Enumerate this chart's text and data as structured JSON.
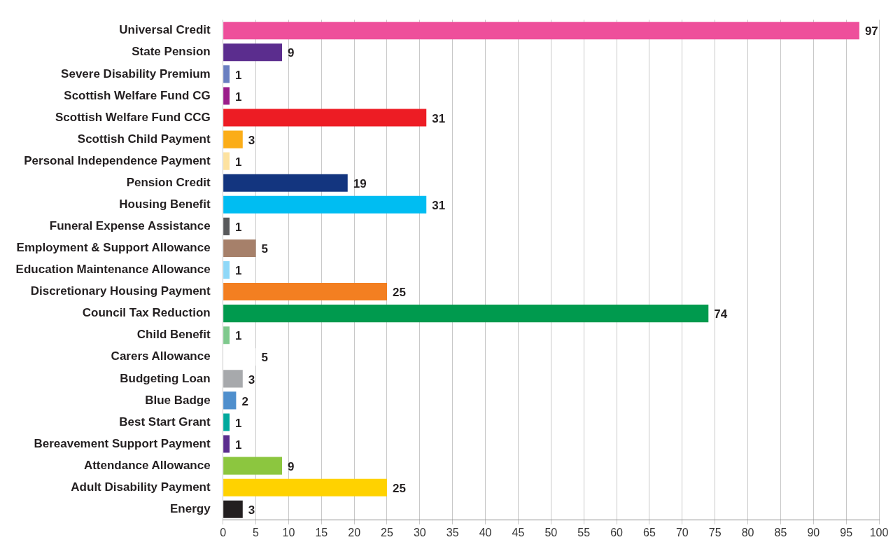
{
  "chart_data": {
    "type": "bar",
    "orientation": "horizontal",
    "categories": [
      "Universal Credit",
      "State Pension",
      "Severe Disability Premium",
      "Scottish Welfare Fund CG",
      "Scottish Welfare Fund CCG",
      "Scottish Child Payment",
      "Personal Independence Payment",
      "Pension Credit",
      "Housing Benefit",
      "Funeral Expense Assistance",
      "Employment & Support Allowance",
      "Education Maintenance Allowance",
      "Discretionary Housing Payment",
      "Council Tax Reduction",
      "Child Benefit",
      "Carers Allowance",
      "Budgeting Loan",
      "Blue Badge",
      "Best Start Grant",
      "Bereavement Support Payment",
      "Attendance Allowance",
      "Adult Disability Payment",
      "Energy"
    ],
    "values": [
      97,
      9,
      1,
      1,
      31,
      3,
      1,
      19,
      31,
      1,
      5,
      1,
      25,
      74,
      1,
      5,
      3,
      2,
      1,
      1,
      9,
      25,
      3
    ],
    "colors": [
      "#ee4f9b",
      "#5b2d8e",
      "#6a7fc1",
      "#9b1d8a",
      "#ed1c24",
      "#fbad18",
      "#fde2a0",
      "#13357f",
      "#00bdf2",
      "#58595b",
      "#a6806a",
      "#8fd8f8",
      "#f37f21",
      "#009a4e",
      "#7fc98d",
      "#ffffff",
      "#a7a9ac",
      "#4f8fcd",
      "#00a99d",
      "#5b2d8e",
      "#8cc63f",
      "#ffd200",
      "#231f20"
    ],
    "xlim": [
      0,
      100
    ],
    "xticks": [
      0,
      5,
      10,
      15,
      20,
      25,
      30,
      35,
      40,
      45,
      50,
      55,
      60,
      65,
      70,
      75,
      80,
      85,
      90,
      95,
      100
    ],
    "grid": "x",
    "data_labels": true
  }
}
